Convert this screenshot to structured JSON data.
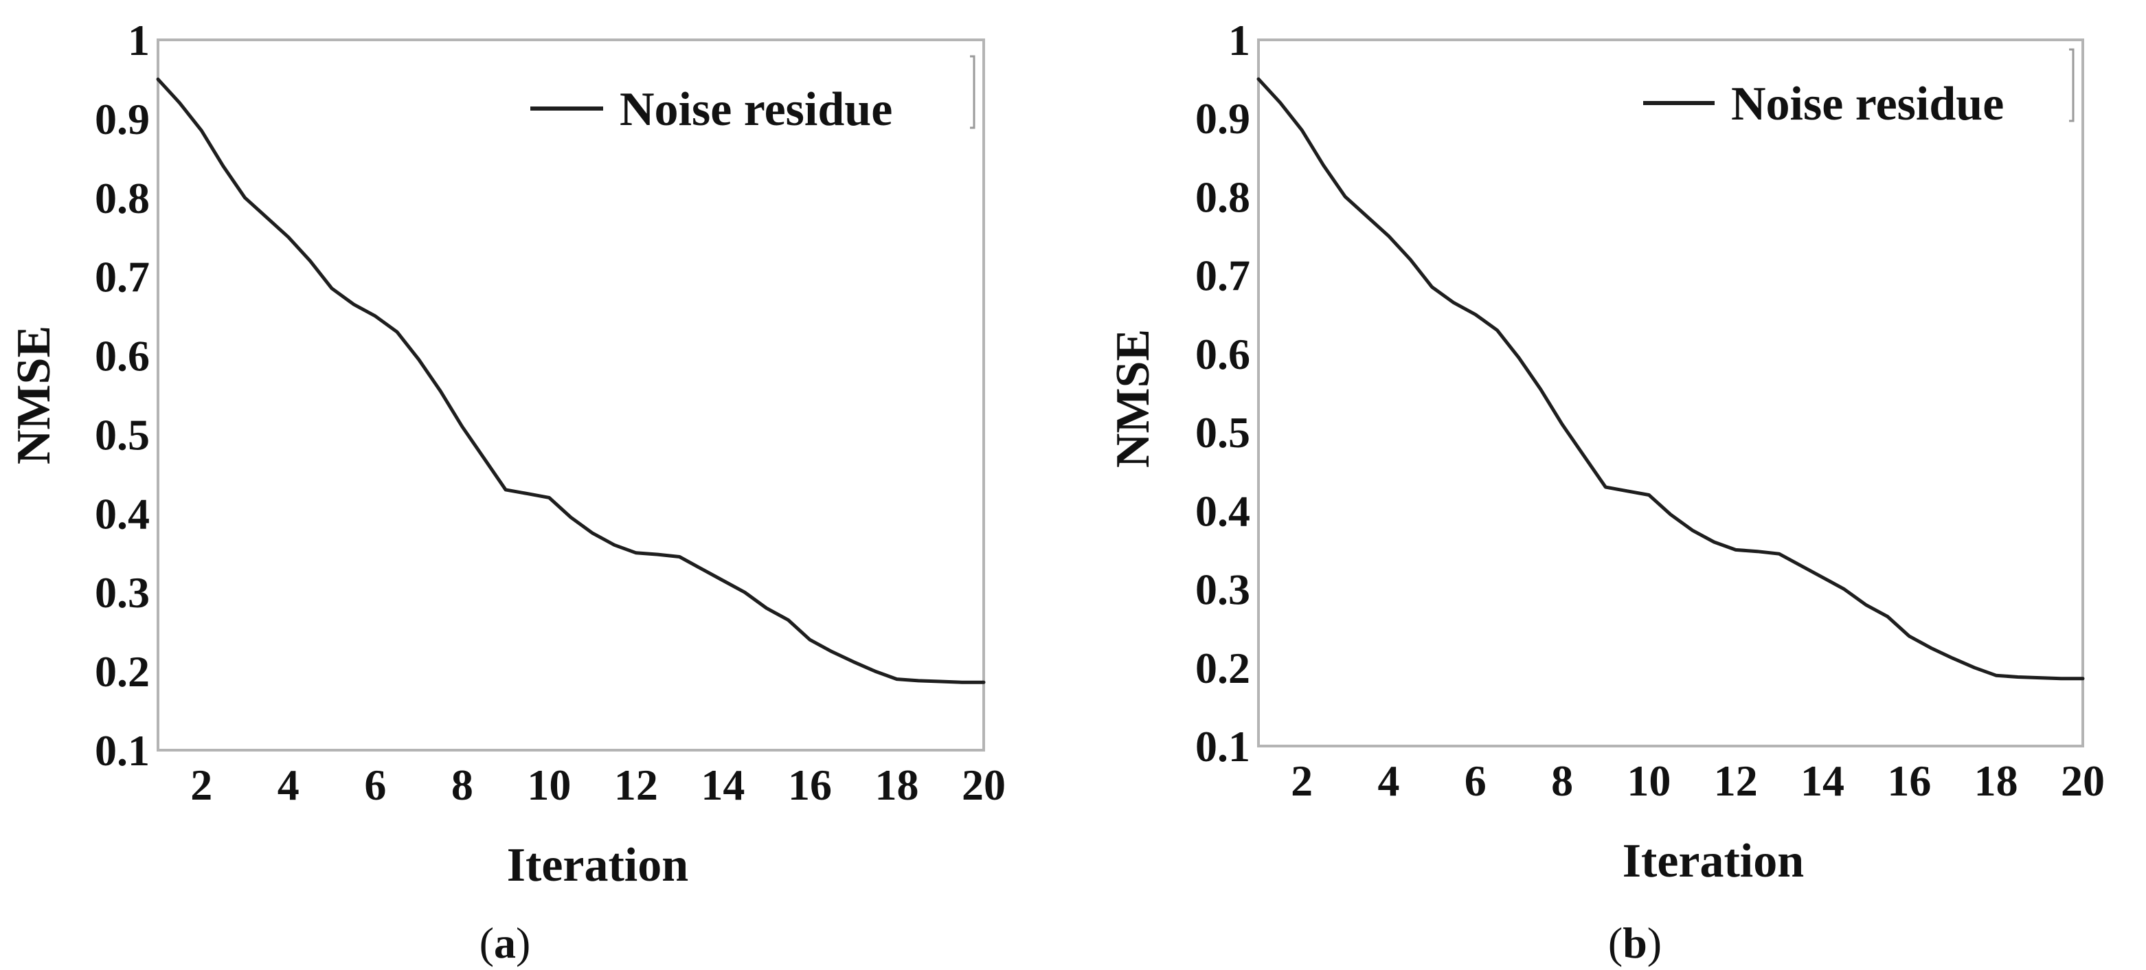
{
  "chart_data": [
    {
      "type": "line",
      "panel_label": "a",
      "xlabel": "Iteration",
      "ylabel": "NMSE",
      "xlim": [
        1,
        20
      ],
      "ylim": [
        0.1,
        1
      ],
      "xticks": [
        2,
        4,
        6,
        8,
        10,
        12,
        14,
        16,
        18,
        20
      ],
      "yticks": [
        0.1,
        0.2,
        0.3,
        0.4,
        0.5,
        0.6,
        0.7,
        0.8,
        0.9,
        1
      ],
      "ytick_labels": [
        "0.1",
        "0.2",
        "0.3",
        "0.4",
        "0.5",
        "0.6",
        "0.7",
        "0.8",
        "0.9",
        "1"
      ],
      "legend_position": "top-right",
      "series": [
        {
          "name": "Noise residue",
          "color": "#1e1e1e",
          "x": [
            1,
            1.5,
            2,
            2.5,
            3,
            3.5,
            4,
            4.5,
            5,
            5.5,
            6,
            6.5,
            7,
            7.5,
            8,
            8.5,
            9,
            9.5,
            10,
            10.5,
            11,
            11.5,
            12,
            12.5,
            13,
            13.5,
            14,
            14.5,
            15,
            15.5,
            16,
            16.5,
            17,
            17.5,
            18,
            18.5,
            19,
            19.5,
            20
          ],
          "y": [
            0.95,
            0.92,
            0.885,
            0.84,
            0.8,
            0.775,
            0.75,
            0.72,
            0.685,
            0.665,
            0.65,
            0.63,
            0.595,
            0.555,
            0.51,
            0.47,
            0.43,
            0.425,
            0.42,
            0.395,
            0.375,
            0.36,
            0.35,
            0.348,
            0.345,
            0.33,
            0.315,
            0.3,
            0.28,
            0.265,
            0.24,
            0.225,
            0.212,
            0.2,
            0.19,
            0.188,
            0.187,
            0.186,
            0.186
          ]
        }
      ]
    },
    {
      "type": "line",
      "panel_label": "b",
      "xlabel": "Iteration",
      "ylabel": "NMSE",
      "xlim": [
        1,
        20
      ],
      "ylim": [
        0.1,
        1
      ],
      "xticks": [
        2,
        4,
        6,
        8,
        10,
        12,
        14,
        16,
        18,
        20
      ],
      "yticks": [
        0.1,
        0.2,
        0.3,
        0.4,
        0.5,
        0.6,
        0.7,
        0.8,
        0.9,
        1
      ],
      "ytick_labels": [
        "0.1",
        "0.2",
        "0.3",
        "0.4",
        "0.5",
        "0.6",
        "0.7",
        "0.8",
        "0.9",
        "1"
      ],
      "legend_position": "top-right",
      "series": [
        {
          "name": "Noise residue",
          "color": "#1e1e1e",
          "x": [
            1,
            1.5,
            2,
            2.5,
            3,
            3.5,
            4,
            4.5,
            5,
            5.5,
            6,
            6.5,
            7,
            7.5,
            8,
            8.5,
            9,
            9.5,
            10,
            10.5,
            11,
            11.5,
            12,
            12.5,
            13,
            13.5,
            14,
            14.5,
            15,
            15.5,
            16,
            16.5,
            17,
            17.5,
            18,
            18.5,
            19,
            19.5,
            20
          ],
          "y": [
            0.95,
            0.92,
            0.885,
            0.84,
            0.8,
            0.775,
            0.75,
            0.72,
            0.685,
            0.665,
            0.65,
            0.63,
            0.595,
            0.555,
            0.51,
            0.47,
            0.43,
            0.425,
            0.42,
            0.395,
            0.375,
            0.36,
            0.35,
            0.348,
            0.345,
            0.33,
            0.315,
            0.3,
            0.28,
            0.265,
            0.24,
            0.225,
            0.212,
            0.2,
            0.19,
            0.188,
            0.187,
            0.186,
            0.186
          ]
        }
      ]
    }
  ]
}
